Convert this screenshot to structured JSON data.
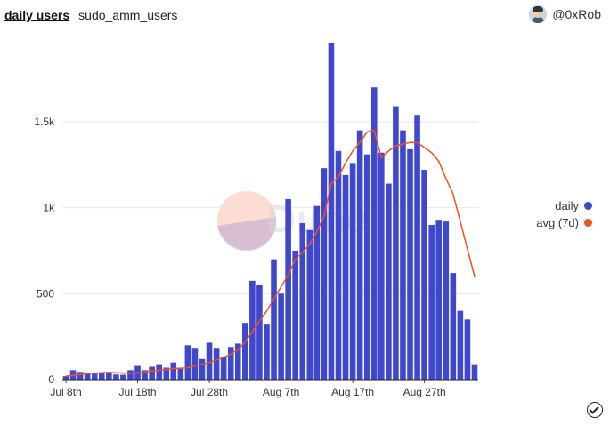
{
  "header": {
    "tab_active": "daily users",
    "tab_other": "sudo_amm_users",
    "author": "@0xRob"
  },
  "watermark": {
    "text": "Dune"
  },
  "legend": [
    {
      "label": "daily",
      "color": "#3f48cc"
    },
    {
      "label": "avg (7d)",
      "color": "#f4511e"
    }
  ],
  "chart_data": {
    "type": "bar",
    "x_tick_labels": [
      "Jul 8th",
      "Jul 18th",
      "Jul 28th",
      "Aug 7th",
      "Aug 17th",
      "Aug 27th"
    ],
    "y_tick_labels": [
      "0",
      "500",
      "1k",
      "1.5k"
    ],
    "ylim": [
      0,
      1960
    ],
    "grid": true,
    "legend_position": "right",
    "series": [
      {
        "name": "daily",
        "type": "bar",
        "color": "#3f48cc",
        "values": [
          20,
          55,
          45,
          40,
          38,
          42,
          38,
          30,
          28,
          55,
          80,
          55,
          75,
          90,
          70,
          100,
          70,
          200,
          185,
          120,
          215,
          185,
          130,
          190,
          210,
          330,
          575,
          550,
          325,
          700,
          500,
          1050,
          750,
          910,
          870,
          1010,
          1230,
          1960,
          1330,
          1190,
          1260,
          1450,
          1310,
          1700,
          1320,
          1140,
          1590,
          1450,
          1340,
          1540,
          1220,
          900,
          930,
          920,
          620,
          400,
          350,
          90
        ]
      },
      {
        "name": "avg (7d)",
        "type": "line",
        "color": "#f4511e",
        "values": [
          20,
          25,
          30,
          35,
          38,
          40,
          42,
          40,
          38,
          36,
          40,
          45,
          50,
          55,
          60,
          65,
          65,
          70,
          80,
          90,
          100,
          115,
          130,
          150,
          175,
          220,
          280,
          340,
          400,
          470,
          540,
          610,
          700,
          740,
          790,
          860,
          950,
          1140,
          1180,
          1260,
          1330,
          1380,
          1440,
          1450,
          1290,
          1330,
          1360,
          1370,
          1380,
          1380,
          1350,
          1320,
          1270,
          1170,
          1080,
          920,
          760,
          600
        ]
      }
    ]
  }
}
